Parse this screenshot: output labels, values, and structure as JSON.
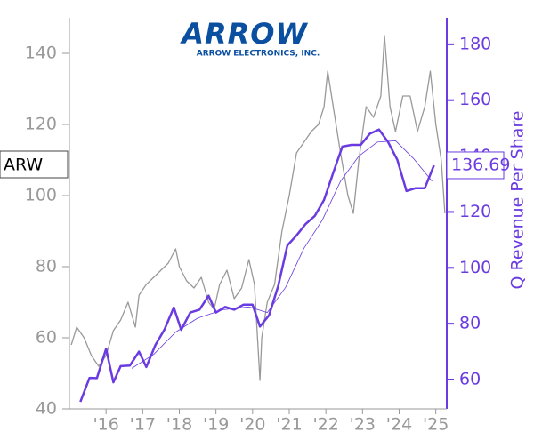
{
  "chart_data": {
    "type": "line",
    "logo_mark": "ARROW",
    "logo_text": "ARROW ELECTRONICS, INC.",
    "ticker": "ARW",
    "y2_label": "Q Revenue Per Share",
    "xlim": [
      2015.0,
      2025.3
    ],
    "xticks": [
      {
        "value": 2016,
        "label": "'16"
      },
      {
        "value": 2017,
        "label": "'17"
      },
      {
        "value": 2018,
        "label": "'18"
      },
      {
        "value": 2019,
        "label": "'19"
      },
      {
        "value": 2020,
        "label": "'20"
      },
      {
        "value": 2021,
        "label": "'21"
      },
      {
        "value": 2022,
        "label": "'22"
      },
      {
        "value": 2023,
        "label": "'23"
      },
      {
        "value": 2024,
        "label": "'24"
      },
      {
        "value": 2025,
        "label": "'25"
      }
    ],
    "ylim": [
      40,
      150
    ],
    "yticks": [
      40,
      60,
      80,
      100,
      120,
      140
    ],
    "y2lim": [
      49.5,
      189.5
    ],
    "y2ticks": [
      60,
      80,
      100,
      120,
      140,
      160,
      180
    ],
    "series": [
      {
        "color": "#999999",
        "axis": "y",
        "x": [
          2015.05,
          2015.2,
          2015.4,
          2015.6,
          2015.8,
          2016.0,
          2016.2,
          2016.4,
          2016.6,
          2016.8,
          2016.9,
          2017.1,
          2017.3,
          2017.5,
          2017.7,
          2017.9,
          2018.0,
          2018.2,
          2018.4,
          2018.6,
          2018.8,
          2018.95,
          2019.1,
          2019.3,
          2019.5,
          2019.7,
          2019.9,
          2020.05,
          2020.2,
          2020.25,
          2020.4,
          2020.6,
          2020.8,
          2021.0,
          2021.2,
          2021.4,
          2021.6,
          2021.8,
          2021.95,
          2022.05,
          2022.2,
          2022.4,
          2022.6,
          2022.75,
          2022.9,
          2023.1,
          2023.3,
          2023.5,
          2023.6,
          2023.75,
          2023.9,
          2024.1,
          2024.3,
          2024.5,
          2024.7,
          2024.85,
          2025.0,
          2025.15,
          2025.25
        ],
        "values": [
          58,
          63,
          60,
          55,
          52,
          55,
          62,
          65,
          70,
          63,
          72,
          75,
          77,
          79,
          81,
          85,
          80,
          76,
          74,
          77,
          70,
          68,
          75,
          79,
          71,
          74,
          82,
          75,
          48,
          60,
          70,
          75,
          90,
          100,
          112,
          115,
          118,
          120,
          125,
          135,
          125,
          112,
          100,
          95,
          110,
          125,
          122,
          128,
          145,
          125,
          118,
          128,
          128,
          118,
          125,
          135,
          120,
          110,
          95
        ]
      },
      {
        "color": "#6a3be0",
        "axis": "y2",
        "x": [
          2015.3,
          2015.55,
          2015.75,
          2016.0,
          2016.2,
          2016.4,
          2016.65,
          2016.9,
          2017.1,
          2017.35,
          2017.6,
          2017.85,
          2018.05,
          2018.3,
          2018.55,
          2018.8,
          2019.0,
          2019.25,
          2019.5,
          2019.75,
          2020.0,
          2020.2,
          2020.45,
          2020.7,
          2020.95,
          2021.2,
          2021.45,
          2021.7,
          2021.95,
          2022.2,
          2022.45,
          2022.7,
          2022.95,
          2023.2,
          2023.45,
          2023.7,
          2023.95,
          2024.2,
          2024.45,
          2024.7,
          2024.95
        ],
        "values": [
          52,
          60.6,
          60.5,
          71,
          59,
          64.8,
          65,
          70,
          64.5,
          72.4,
          78,
          85.8,
          77.8,
          84,
          85,
          90,
          84,
          86,
          85,
          86.8,
          86.8,
          79,
          83,
          93.5,
          108,
          111.6,
          115.7,
          118.6,
          124.3,
          134,
          143.4,
          144,
          144,
          148,
          149.5,
          145,
          138.7,
          127.5,
          128.5,
          128.5,
          136.69
        ]
      },
      {
        "color": "#6a3be0",
        "axis": "y2",
        "x": [
          2016.7,
          2017.3,
          2017.9,
          2018.5,
          2019.2,
          2019.9,
          2020.4,
          2020.9,
          2021.4,
          2021.9,
          2022.4,
          2022.9,
          2023.4,
          2023.9,
          2024.4,
          2024.9
        ],
        "values": [
          64,
          69,
          77,
          82,
          85,
          86,
          84,
          93,
          107,
          117,
          131,
          140,
          145,
          145.5,
          139,
          131
        ]
      }
    ]
  }
}
